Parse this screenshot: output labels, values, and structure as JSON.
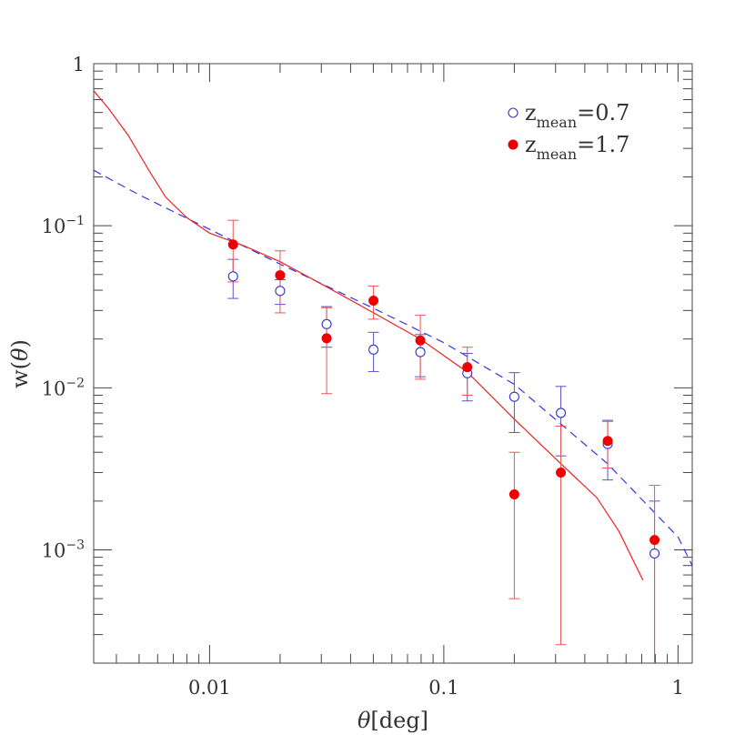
{
  "chart_data": {
    "type": "scatter",
    "title": "",
    "xlabel": {
      "symbol": "θ",
      "unit": "[deg]"
    },
    "ylabel": {
      "prefix": "w(",
      "symbol": "θ",
      "suffix": ")"
    },
    "x_scale": "log",
    "y_scale": "log",
    "xlim": [
      0.0032,
      1.15
    ],
    "ylim": [
      0.0002,
      1.0
    ],
    "x_ticks": [
      {
        "value": 0.01,
        "label": "0.01"
      },
      {
        "value": 0.1,
        "label": "0.1"
      },
      {
        "value": 1,
        "label": "1"
      }
    ],
    "y_ticks": [
      {
        "value": 1,
        "base": "1",
        "exp": ""
      },
      {
        "value": 0.1,
        "base": "10",
        "exp": "−1"
      },
      {
        "value": 0.01,
        "base": "10",
        "exp": "−2"
      },
      {
        "value": 0.001,
        "base": "10",
        "exp": "−3"
      }
    ],
    "legend_position": "top-right",
    "series": [
      {
        "name": "z_mean=0.7",
        "legend": {
          "main": "z",
          "sub": "mean",
          "rest": "=0.7"
        },
        "marker": "open-circle",
        "color": "#3333cc",
        "points": [
          {
            "x": 0.0126,
            "y": 0.0487,
            "lo": 0.0356,
            "hi": 0.062
          },
          {
            "x": 0.02,
            "y": 0.0396,
            "lo": 0.0327,
            "hi": 0.0465
          },
          {
            "x": 0.0316,
            "y": 0.0247,
            "lo": 0.0178,
            "hi": 0.0317
          },
          {
            "x": 0.0501,
            "y": 0.0172,
            "lo": 0.0126,
            "hi": 0.022
          },
          {
            "x": 0.0794,
            "y": 0.0166,
            "lo": 0.0117,
            "hi": 0.0213
          },
          {
            "x": 0.126,
            "y": 0.0123,
            "lo": 0.0083,
            "hi": 0.0163
          },
          {
            "x": 0.2,
            "y": 0.0088,
            "lo": 0.0053,
            "hi": 0.0124
          },
          {
            "x": 0.316,
            "y": 0.007,
            "lo": 0.0038,
            "hi": 0.0102
          },
          {
            "x": 0.501,
            "y": 0.0045,
            "lo": 0.0027,
            "hi": 0.0063
          },
          {
            "x": 0.794,
            "y": 0.00095,
            "lo": 0.0002,
            "hi": 0.002
          }
        ]
      },
      {
        "name": "z_mean=1.7",
        "legend": {
          "main": "z",
          "sub": "mean",
          "rest": "=1.7"
        },
        "marker": "filled-circle",
        "color": "#ee0000",
        "points": [
          {
            "x": 0.0126,
            "y": 0.0766,
            "lo": 0.045,
            "hi": 0.108
          },
          {
            "x": 0.02,
            "y": 0.0495,
            "lo": 0.029,
            "hi": 0.07
          },
          {
            "x": 0.0316,
            "y": 0.0202,
            "lo": 0.0092,
            "hi": 0.0312
          },
          {
            "x": 0.0501,
            "y": 0.0345,
            "lo": 0.0265,
            "hi": 0.0425
          },
          {
            "x": 0.0794,
            "y": 0.0196,
            "lo": 0.0113,
            "hi": 0.028
          },
          {
            "x": 0.126,
            "y": 0.0134,
            "lo": 0.009,
            "hi": 0.0178
          },
          {
            "x": 0.2,
            "y": 0.0022,
            "lo": 0.0005,
            "hi": 0.004
          },
          {
            "x": 0.316,
            "y": 0.003,
            "lo": 0.00026,
            "hi": 0.0058
          },
          {
            "x": 0.501,
            "y": 0.0047,
            "lo": 0.0032,
            "hi": 0.0062
          },
          {
            "x": 0.794,
            "y": 0.00115,
            "lo": 0.0002,
            "hi": 0.0025
          }
        ]
      }
    ],
    "model_curves": [
      {
        "for_series": "z_mean=0.7",
        "style": "dashed",
        "color": "#3333ee",
        "points": [
          [
            0.0032,
            0.22
          ],
          [
            0.005,
            0.155
          ],
          [
            0.01,
            0.095
          ],
          [
            0.02,
            0.058
          ],
          [
            0.05,
            0.031
          ],
          [
            0.1,
            0.019
          ],
          [
            0.2,
            0.0105
          ],
          [
            0.5,
            0.0034
          ],
          [
            1.0,
            0.0012
          ],
          [
            1.15,
            0.0008
          ]
        ]
      },
      {
        "for_series": "z_mean=1.7",
        "style": "solid",
        "color": "#ee2222",
        "points": [
          [
            0.0032,
            0.68
          ],
          [
            0.0037,
            0.53
          ],
          [
            0.0045,
            0.36
          ],
          [
            0.0055,
            0.22
          ],
          [
            0.0065,
            0.15
          ],
          [
            0.008,
            0.112
          ],
          [
            0.01,
            0.09
          ],
          [
            0.0141,
            0.075
          ],
          [
            0.02,
            0.06
          ],
          [
            0.0316,
            0.042
          ],
          [
            0.0501,
            0.029
          ],
          [
            0.0794,
            0.02
          ],
          [
            0.126,
            0.0125
          ],
          [
            0.2,
            0.0064
          ],
          [
            0.316,
            0.0034
          ],
          [
            0.45,
            0.0021
          ],
          [
            0.56,
            0.0013
          ],
          [
            0.708,
            0.00065
          ]
        ]
      }
    ]
  }
}
